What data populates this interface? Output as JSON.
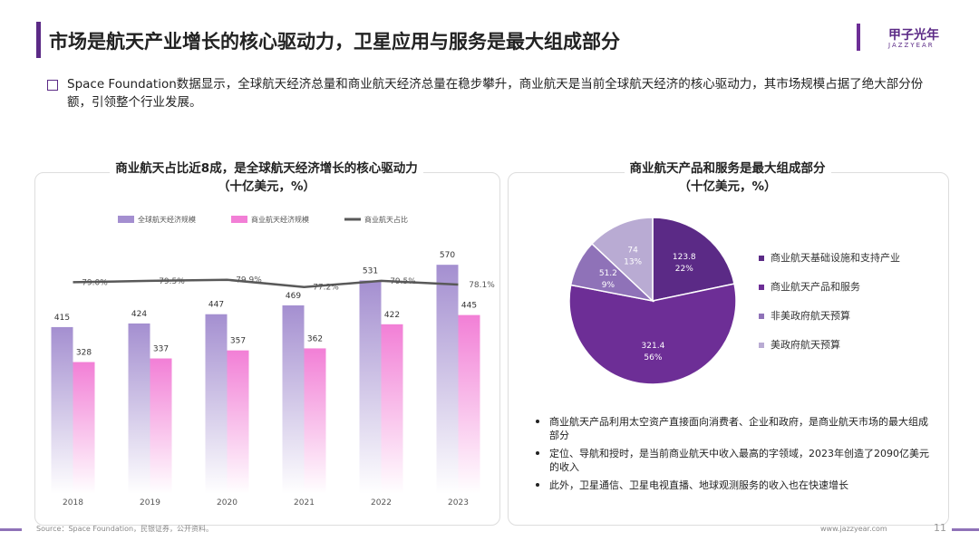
{
  "header": {
    "title": "市场是航天产业增长的核心驱动力，卫星应用与服务是最大组成部分",
    "logo": "甲子光年",
    "logo_sub": "JAZZYEAR"
  },
  "intro": "Space Foundation数据显示，全球航天经济总量和商业航天经济总量在稳步攀升，商业航天是当前全球航天经济的核心驱动力，其市场规模占据了绝大部分份额，引领整个行业发展。",
  "chart_data": [
    {
      "type": "bar",
      "title": "商业航天占比近8成，是全球航天经济增长的核心驱动力",
      "subtitle": "（十亿美元，%）",
      "categories": [
        "2018",
        "2019",
        "2020",
        "2021",
        "2022",
        "2023"
      ],
      "ylim": [
        0,
        620
      ],
      "y2lim": [
        0,
        93
      ],
      "series": [
        {
          "name": "全球航天经济规模",
          "color": "#a48fd0",
          "values": [
            415,
            424,
            447,
            469,
            531,
            570
          ]
        },
        {
          "name": "商业航天经济规模",
          "color": "#f27fd6",
          "values": [
            328,
            337,
            357,
            362,
            422,
            445
          ]
        },
        {
          "name": "商业航天占比",
          "type": "line",
          "axis": "y2",
          "color": "#595959",
          "values": [
            79.0,
            79.5,
            79.9,
            77.2,
            79.5,
            78.1
          ],
          "value_labels": [
            "79.0%",
            "79.5%",
            "79.9%",
            "77.2%",
            "79.5%",
            "78.1%"
          ]
        }
      ]
    },
    {
      "type": "pie",
      "title": "商业航天产品和服务是最大组成部分",
      "subtitle": "（十亿美元，%）",
      "categories": [
        "商业航天基础设施和支持产业",
        "商业航天产品和服务",
        "非美政府航天预算",
        "美政府航天预算"
      ],
      "values": [
        123.8,
        321.4,
        51.2,
        74
      ],
      "share_labels": [
        "22%",
        "56%",
        "9%",
        "13%"
      ],
      "colors": [
        "#5b2a86",
        "#6d2e96",
        "#8f72b8",
        "#b9abd3"
      ]
    }
  ],
  "notes": [
    "商业航天产品利用太空资产直接面向消费者、企业和政府，是商业航天市场的最大组成部分",
    "定位、导航和授时，是当前商业航天中收入最高的字领域，2023年创造了2090亿美元的收入",
    "此外，卫星通信、卫星电视直播、地球观测服务的收入也在快速增长"
  ],
  "footer": {
    "source": "Source：Space Foundation，民银证券，公开资料。",
    "url": "www.jazzyear.com",
    "page": "11"
  }
}
